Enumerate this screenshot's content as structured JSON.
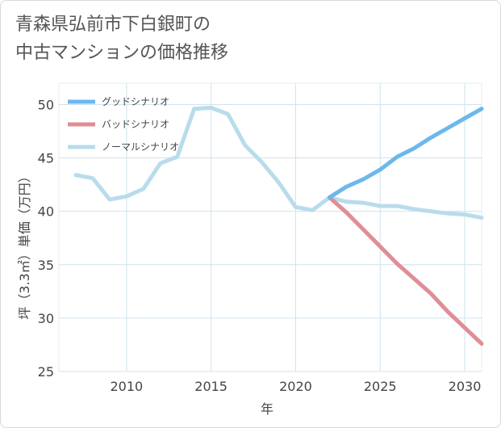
{
  "chart_data": {
    "type": "line",
    "title": "青森県弘前市下白銀町の\n中古マンションの価格推移",
    "xlabel": "年",
    "ylabel": "坪（3.3㎡）単価（万円）",
    "xlim": [
      2006,
      2031
    ],
    "ylim": [
      25,
      52
    ],
    "x_ticks": [
      2010,
      2015,
      2020,
      2025,
      2030
    ],
    "y_ticks": [
      25,
      30,
      35,
      40,
      45,
      50
    ],
    "grid": true,
    "legend_position": "top-left",
    "series": [
      {
        "name": "グッドシナリオ",
        "color": "#6cb8ec",
        "x": [
          2022,
          2023,
          2024,
          2025,
          2026,
          2027,
          2028,
          2029,
          2030,
          2031
        ],
        "y": [
          41.3,
          42.3,
          43.0,
          43.9,
          45.1,
          45.9,
          46.9,
          47.8,
          48.7,
          49.6
        ]
      },
      {
        "name": "バッドシナリオ",
        "color": "#e08e96",
        "x": [
          2022,
          2023,
          2024,
          2025,
          2026,
          2027,
          2028,
          2029,
          2030,
          2031
        ],
        "y": [
          41.3,
          39.9,
          38.3,
          36.7,
          35.1,
          33.7,
          32.3,
          30.6,
          29.1,
          27.6
        ]
      },
      {
        "name": "ノーマルシナリオ",
        "color": "#b9dcec",
        "x": [
          2007,
          2008,
          2009,
          2010,
          2011,
          2012,
          2013,
          2014,
          2015,
          2016,
          2017,
          2018,
          2019,
          2020,
          2021,
          2022,
          2023,
          2024,
          2025,
          2026,
          2027,
          2028,
          2029,
          2030,
          2031
        ],
        "y": [
          43.4,
          43.1,
          41.1,
          41.4,
          42.1,
          44.5,
          45.1,
          49.6,
          49.7,
          49.1,
          46.2,
          44.6,
          42.7,
          40.4,
          40.1,
          41.3,
          40.9,
          40.8,
          40.5,
          40.5,
          40.2,
          40.0,
          39.8,
          39.7,
          39.4
        ]
      }
    ]
  }
}
